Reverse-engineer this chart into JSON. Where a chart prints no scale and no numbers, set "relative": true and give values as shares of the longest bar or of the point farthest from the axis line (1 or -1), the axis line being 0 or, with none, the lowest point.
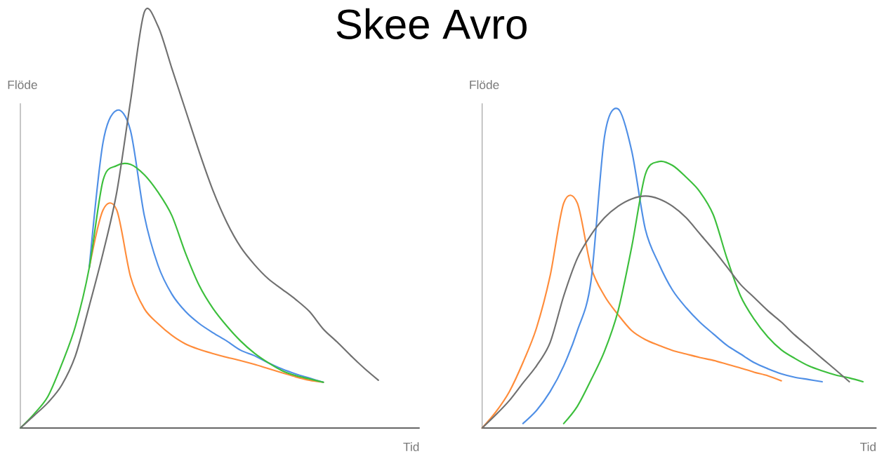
{
  "chart_data": [
    {
      "type": "line",
      "title": "Skee Avro",
      "xlabel": "Tid",
      "ylabel": "Flöde",
      "relative": true,
      "line_style": "solid",
      "categories": [
        null,
        null,
        null,
        null,
        null,
        null,
        null,
        null,
        null,
        null,
        null,
        null,
        null,
        null,
        null,
        null,
        null,
        null,
        null,
        null,
        null,
        null,
        null,
        null,
        null,
        null,
        null,
        null,
        null,
        null
      ],
      "series": [
        {
          "color": "#ff8c3a",
          "values": [
            null,
            null,
            null,
            null,
            null,
            0.385,
            0.524,
            0.524,
            0.364,
            0.287,
            0.251,
            0.223,
            0.202,
            0.189,
            0.179,
            0.17,
            0.162,
            0.153,
            0.143,
            0.133,
            0.123,
            0.115,
            0.11,
            null,
            null,
            null,
            null,
            null,
            null,
            null
          ]
        },
        {
          "color": "#4f8fe6",
          "values": [
            null,
            null,
            null,
            null,
            null,
            0.385,
            0.686,
            0.764,
            0.715,
            0.511,
            0.391,
            0.322,
            0.28,
            0.251,
            0.229,
            0.209,
            0.187,
            0.174,
            0.157,
            0.142,
            0.13,
            0.12,
            0.11,
            null,
            null,
            null,
            null,
            null,
            null,
            null
          ]
        },
        {
          "color": "#3cbf3c",
          "values": [
            0,
            0.034,
            0.076,
            0.153,
            0.245,
            0.385,
            0.595,
            0.631,
            0.634,
            0.609,
            0.567,
            0.511,
            0.42,
            0.342,
            0.287,
            0.245,
            0.209,
            0.18,
            0.157,
            0.138,
            0.126,
            0.118,
            0.11,
            null,
            null,
            null,
            null,
            null,
            null,
            null
          ]
        },
        {
          "color": "#707070",
          "values": [
            0,
            0.03,
            0.061,
            0.103,
            0.174,
            0.293,
            0.42,
            0.567,
            0.786,
            1,
            0.966,
            0.865,
            0.764,
            0.663,
            0.57,
            0.494,
            0.435,
            0.393,
            0.359,
            0.334,
            0.309,
            0.28,
            0.238,
            0.207,
            0.174,
            0.143,
            0.115,
            null,
            null,
            null
          ]
        }
      ]
    },
    {
      "type": "line",
      "xlabel": "Tid",
      "ylabel": "Flöde",
      "relative": true,
      "line_style": "solid",
      "categories": [
        null,
        null,
        null,
        null,
        null,
        null,
        null,
        null,
        null,
        null,
        null,
        null,
        null,
        null,
        null,
        null,
        null,
        null,
        null,
        null,
        null,
        null,
        null,
        null,
        null,
        null,
        null,
        null,
        null,
        null
      ],
      "series": [
        {
          "color": "#ff8c3a",
          "values": [
            0,
            0.05,
            0.114,
            0.205,
            0.314,
            0.477,
            0.705,
            0.705,
            0.505,
            0.414,
            0.355,
            0.305,
            0.277,
            0.259,
            0.243,
            0.232,
            0.221,
            0.212,
            0.2,
            0.188,
            0.175,
            0.164,
            0.148,
            null,
            null,
            null,
            null,
            null,
            null,
            null
          ]
        },
        {
          "color": "#4f8fe6",
          "values": [
            null,
            null,
            null,
            0.014,
            0.055,
            0.114,
            0.195,
            0.305,
            0.459,
            0.914,
            1,
            0.868,
            0.623,
            0.514,
            0.432,
            0.377,
            0.332,
            0.295,
            0.259,
            0.232,
            0.205,
            0.186,
            0.17,
            0.159,
            0.152,
            0.145,
            null,
            null,
            null,
            null
          ]
        },
        {
          "color": "#3cbf3c",
          "values": [
            null,
            null,
            null,
            null,
            null,
            null,
            0.014,
            0.068,
            0.15,
            0.241,
            0.368,
            0.568,
            0.795,
            0.835,
            0.823,
            0.786,
            0.741,
            0.668,
            0.532,
            0.414,
            0.341,
            0.286,
            0.245,
            0.218,
            0.195,
            0.179,
            0.166,
            0.157,
            0.145,
            null
          ]
        },
        {
          "color": "#707070",
          "values": [
            0,
            0.041,
            0.086,
            0.141,
            0.195,
            0.268,
            0.414,
            0.532,
            0.605,
            0.659,
            0.695,
            0.718,
            0.727,
            0.718,
            0.695,
            0.659,
            0.609,
            0.559,
            0.505,
            0.45,
            0.409,
            0.368,
            0.332,
            0.291,
            0.255,
            0.218,
            0.182,
            0.145,
            null,
            null
          ]
        }
      ]
    }
  ]
}
